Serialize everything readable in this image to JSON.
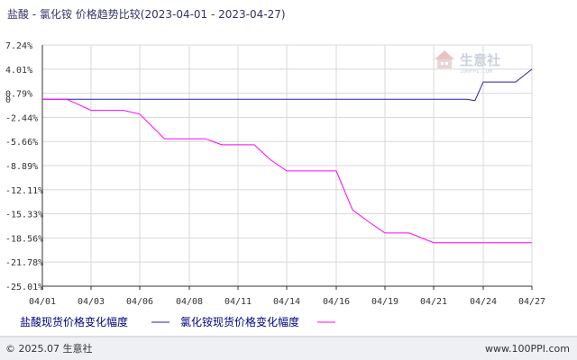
{
  "title": "盐酸 - 氯化铵 价格趋势比较(2023-04-01 - 2023-04-27)",
  "watermark": {
    "brand": "生意社",
    "domain": "100PPI.COM"
  },
  "footer": {
    "left": "© 2025.07 生意社",
    "right": "www.100PPI.com"
  },
  "colors": {
    "series1": "#2020b0",
    "series2": "#ff00ff",
    "grid": "#d8d8d8",
    "axis": "#333333"
  },
  "chart_data": {
    "type": "line",
    "title": "盐酸 - 氯化铵 价格趋势比较(2023-04-01 - 2023-04-27)",
    "ylim": [
      -25.01,
      7.24
    ],
    "y_ticks": [
      "7.24%",
      "4.01%",
      "0.79%",
      "-2.44%",
      "-5.66%",
      "-8.89%",
      "-12.11%",
      "-15.33%",
      "-18.56%",
      "-21.78%",
      "-25.01%"
    ],
    "y_tick_values": [
      7.24,
      4.01,
      0.79,
      -2.44,
      -5.66,
      -8.89,
      -12.11,
      -15.33,
      -18.56,
      -21.78,
      -25.01
    ],
    "zero_label": "0",
    "x_ticks": [
      "04/01",
      "04/03",
      "04/06",
      "04/08",
      "04/11",
      "04/14",
      "04/16",
      "04/19",
      "04/21",
      "04/24",
      "04/27"
    ],
    "series": [
      {
        "name": "盐酸现货价格变化幅度",
        "color": "#2020b0",
        "points": [
          [
            "04/01",
            0
          ],
          [
            "04/02",
            0
          ],
          [
            "04/03",
            0
          ],
          [
            "04/04",
            0
          ],
          [
            "04/05",
            0
          ],
          [
            "04/06",
            0
          ],
          [
            "04/07",
            0
          ],
          [
            "04/08",
            0
          ],
          [
            "04/09",
            0
          ],
          [
            "04/10",
            0
          ],
          [
            "04/11",
            0
          ],
          [
            "04/12",
            0
          ],
          [
            "04/13",
            0
          ],
          [
            "04/14",
            0
          ],
          [
            "04/15",
            0
          ],
          [
            "04/16",
            0
          ],
          [
            "04/17",
            0
          ],
          [
            "04/18",
            0
          ],
          [
            "04/19",
            0
          ],
          [
            "04/20",
            0
          ],
          [
            "04/21",
            0
          ],
          [
            "04/22",
            0
          ],
          [
            "04/23",
            0
          ],
          [
            "04/23.5",
            -0.2
          ],
          [
            "04/24",
            2.3
          ],
          [
            "04/25",
            2.3
          ],
          [
            "04/26",
            2.3
          ],
          [
            "04/27",
            4.0
          ]
        ]
      },
      {
        "name": "氯化铵现货价格变化幅度",
        "color": "#ff00ff",
        "points": [
          [
            "04/01",
            0
          ],
          [
            "04/02",
            0
          ],
          [
            "04/03",
            -1.5
          ],
          [
            "04/04",
            -1.5
          ],
          [
            "04/05",
            -1.5
          ],
          [
            "04/06",
            -2.0
          ],
          [
            "04/07",
            -5.3
          ],
          [
            "04/08",
            -5.3
          ],
          [
            "04/09",
            -5.3
          ],
          [
            "04/10",
            -6.1
          ],
          [
            "04/11",
            -6.1
          ],
          [
            "04/12",
            -6.1
          ],
          [
            "04/13",
            -8.1
          ],
          [
            "04/14",
            -9.6
          ],
          [
            "04/15",
            -9.6
          ],
          [
            "04/16",
            -9.6
          ],
          [
            "04/17",
            -14.8
          ],
          [
            "04/18",
            -16.4
          ],
          [
            "04/19",
            -17.9
          ],
          [
            "04/20",
            -17.9
          ],
          [
            "04/21",
            -19.2
          ],
          [
            "04/22",
            -19.2
          ],
          [
            "04/23",
            -19.2
          ],
          [
            "04/24",
            -19.2
          ],
          [
            "04/25",
            -19.2
          ],
          [
            "04/26",
            -19.2
          ],
          [
            "04/27",
            -19.2
          ]
        ]
      }
    ],
    "grid": true,
    "legend_position": "bottom"
  }
}
